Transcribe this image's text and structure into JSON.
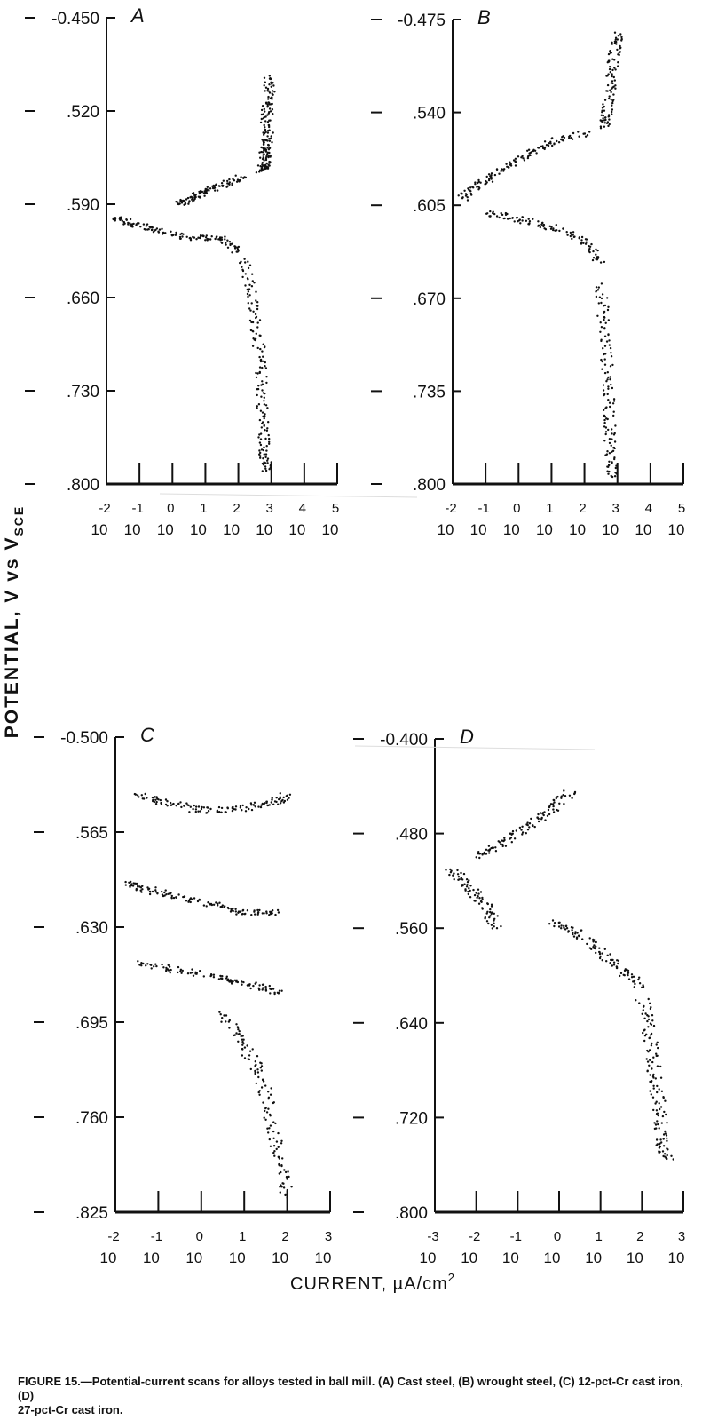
{
  "figure": {
    "y_axis_label": "POTENTIAL, V vs V",
    "y_axis_label_sub": "SCE",
    "x_axis_label": "CURRENT, µA/cm",
    "x_axis_label_sup": "2",
    "caption_line1": "FIGURE 15.—Potential-current scans for alloys tested in ball mill. (A) Cast steel, (B) wrought steel, (C) 12-pct-Cr cast iron, (D)",
    "caption_line2": "27-pct-Cr cast iron."
  },
  "chart_data": [
    {
      "type": "scatter",
      "panel": "A",
      "title": "A",
      "x_scale": "log",
      "xlim": [
        -2,
        5
      ],
      "x_ticks": [
        -2,
        -1,
        0,
        1,
        2,
        3,
        4,
        5
      ],
      "x_tick_labels": [
        "-2",
        "-1",
        "0",
        "1",
        "2",
        "3",
        "4",
        "5"
      ],
      "x_tick_base": "10",
      "ylim": [
        -0.45,
        -0.8
      ],
      "y_ticks": [
        -0.45,
        -0.52,
        -0.59,
        -0.66,
        -0.73,
        -0.8
      ],
      "y_tick_labels": [
        "-0.450",
        ".520",
        ".590",
        ".660",
        ".730",
        ".800"
      ],
      "branches": [
        {
          "x": [
            2.9,
            2.95,
            2.85,
            2.9,
            2.8,
            2.85,
            2.7
          ],
          "y": [
            -0.495,
            -0.51,
            -0.525,
            -0.54,
            -0.55,
            -0.56,
            -0.565
          ]
        },
        {
          "x": [
            2.1,
            1.6,
            1.0,
            0.6,
            0.2
          ],
          "y": [
            -0.57,
            -0.575,
            -0.58,
            -0.585,
            -0.59
          ]
        },
        {
          "x": [
            -1.8,
            -1.2,
            -0.5,
            0.5,
            1.5,
            2.0
          ],
          "y": [
            -0.6,
            -0.605,
            -0.61,
            -0.615,
            -0.615,
            -0.625
          ]
        },
        {
          "x": [
            2.2,
            2.4,
            2.6,
            2.7,
            2.75,
            2.8,
            2.85
          ],
          "y": [
            -0.63,
            -0.66,
            -0.69,
            -0.72,
            -0.75,
            -0.775,
            -0.79
          ]
        }
      ]
    },
    {
      "type": "scatter",
      "panel": "B",
      "title": "B",
      "x_scale": "log",
      "xlim": [
        -2,
        5
      ],
      "x_ticks": [
        -2,
        -1,
        0,
        1,
        2,
        3,
        4,
        5
      ],
      "x_tick_labels": [
        "-2",
        "-1",
        "0",
        "1",
        "2",
        "3",
        "4",
        "5"
      ],
      "x_tick_base": "10",
      "ylim": [
        -0.475,
        -0.8
      ],
      "y_ticks": [
        -0.475,
        -0.54,
        -0.605,
        -0.67,
        -0.735,
        -0.8
      ],
      "y_tick_labels": [
        "-0.475",
        ".540",
        ".605",
        ".670",
        ".735",
        ".800"
      ],
      "branches": [
        {
          "x": [
            3.0,
            2.9,
            2.8,
            2.7,
            2.6
          ],
          "y": [
            -0.485,
            -0.5,
            -0.52,
            -0.54,
            -0.55
          ]
        },
        {
          "x": [
            2.0,
            1.0,
            0.2,
            -0.5,
            -1.2,
            -1.7
          ],
          "y": [
            -0.555,
            -0.56,
            -0.57,
            -0.58,
            -0.59,
            -0.6
          ]
        },
        {
          "x": [
            -1.0,
            0.0,
            1.0,
            2.0,
            2.5
          ],
          "y": [
            -0.61,
            -0.615,
            -0.62,
            -0.63,
            -0.645
          ]
        },
        {
          "x": [
            2.5,
            2.6,
            2.7,
            2.75,
            2.8,
            2.85
          ],
          "y": [
            -0.66,
            -0.69,
            -0.72,
            -0.75,
            -0.775,
            -0.795
          ]
        }
      ]
    },
    {
      "type": "scatter",
      "panel": "C",
      "title": "C",
      "x_scale": "log",
      "xlim": [
        -2,
        3
      ],
      "x_ticks": [
        -2,
        -1,
        0,
        1,
        2,
        3
      ],
      "x_tick_labels": [
        "-2",
        "-1",
        "0",
        "1",
        "2",
        "3"
      ],
      "x_tick_base": "10",
      "ylim": [
        -0.5,
        -0.825
      ],
      "y_ticks": [
        -0.5,
        -0.565,
        -0.63,
        -0.695,
        -0.76,
        -0.825
      ],
      "y_tick_labels": [
        "-0.500",
        ".565",
        ".630",
        ".695",
        ".760",
        ".825"
      ],
      "branches": [
        {
          "x": [
            -1.5,
            -0.8,
            0.0,
            0.8,
            1.6,
            2.0
          ],
          "y": [
            -0.54,
            -0.545,
            -0.55,
            -0.55,
            -0.545,
            -0.54
          ]
        },
        {
          "x": [
            -1.8,
            -1.2,
            -0.5,
            0.3,
            1.0,
            1.8
          ],
          "y": [
            -0.6,
            -0.605,
            -0.61,
            -0.615,
            -0.62,
            -0.62
          ]
        },
        {
          "x": [
            -1.5,
            -0.5,
            0.5,
            1.2,
            1.8
          ],
          "y": [
            -0.655,
            -0.66,
            -0.665,
            -0.67,
            -0.675
          ]
        },
        {
          "x": [
            0.5,
            1.0,
            1.4,
            1.6,
            1.8,
            2.0
          ],
          "y": [
            -0.69,
            -0.71,
            -0.73,
            -0.76,
            -0.79,
            -0.815
          ]
        }
      ]
    },
    {
      "type": "scatter",
      "panel": "D",
      "title": "D",
      "x_scale": "log",
      "xlim": [
        -3,
        3
      ],
      "x_ticks": [
        -3,
        -2,
        -1,
        0,
        1,
        2,
        3
      ],
      "x_tick_labels": [
        "-3",
        "-2",
        "-1",
        "0",
        "1",
        "2",
        "3"
      ],
      "x_tick_base": "10",
      "ylim": [
        -0.4,
        -0.8
      ],
      "y_ticks": [
        -0.4,
        -0.48,
        -0.56,
        -0.64,
        -0.72,
        -0.8
      ],
      "y_tick_labels": [
        "-0.400",
        ".480",
        ".560",
        ".640",
        ".720",
        ".800"
      ],
      "branches": [
        {
          "x": [
            0.3,
            -0.2,
            -0.8,
            -1.4,
            -2.0
          ],
          "y": [
            -0.445,
            -0.46,
            -0.475,
            -0.49,
            -0.5
          ]
        },
        {
          "x": [
            -2.6,
            -2.2,
            -1.8,
            -1.5
          ],
          "y": [
            -0.51,
            -0.525,
            -0.54,
            -0.56
          ]
        },
        {
          "x": [
            -0.2,
            0.5,
            1.0,
            1.5,
            2.0
          ],
          "y": [
            -0.555,
            -0.565,
            -0.58,
            -0.595,
            -0.61
          ]
        },
        {
          "x": [
            2.0,
            2.2,
            2.3,
            2.4,
            2.5,
            2.6
          ],
          "y": [
            -0.62,
            -0.65,
            -0.68,
            -0.71,
            -0.74,
            -0.755
          ]
        }
      ]
    }
  ]
}
